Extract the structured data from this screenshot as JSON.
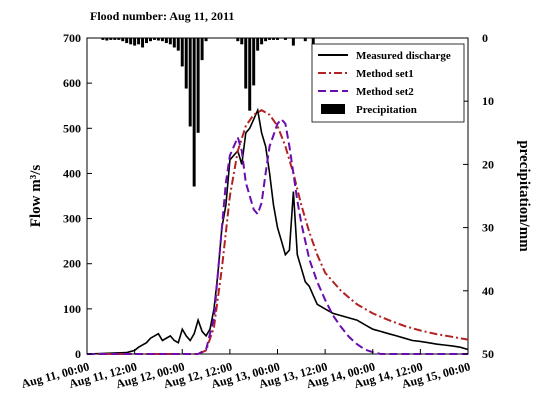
{
  "chart_data": {
    "type": "line",
    "title": "Flood number: Aug 11, 2011",
    "xlabel": "",
    "ylabel": "Flow m³/s",
    "y2label": "precipitation/mm",
    "x_ticks": [
      "Aug 11, 00:00",
      "Aug 11, 12:00",
      "Aug 12, 00:00",
      "Aug 12, 12:00",
      "Aug 13, 00:00",
      "Aug 13, 12:00",
      "Aug 14, 00:00",
      "Aug 14, 12:00",
      "Aug 15, 00:00"
    ],
    "xlim_hours": [
      0,
      96
    ],
    "ylim": [
      0,
      700
    ],
    "y_ticks": [
      0,
      100,
      200,
      300,
      400,
      500,
      600,
      700
    ],
    "y2lim_inverted": [
      0,
      50
    ],
    "y2_ticks": [
      0,
      10,
      20,
      30,
      40,
      50
    ],
    "legend_position": "top-right",
    "series": [
      {
        "name": "Measured discharge",
        "color": "#000000",
        "style": "solid",
        "x": [
          0,
          10,
          12,
          13,
          15,
          16,
          18,
          19,
          21,
          22,
          23,
          24,
          25,
          26,
          27,
          28,
          29,
          30,
          31,
          32,
          33,
          34,
          35,
          36,
          37,
          38,
          39,
          40,
          41,
          42,
          43,
          44,
          45,
          46,
          47,
          48,
          49,
          50,
          51,
          52,
          53,
          54,
          55,
          56,
          57,
          58,
          60,
          62,
          64,
          66,
          68,
          70,
          72,
          74,
          76,
          78,
          80,
          82,
          84,
          86,
          88,
          90,
          92,
          94,
          96
        ],
        "y": [
          0,
          3,
          8,
          15,
          25,
          35,
          45,
          30,
          40,
          30,
          25,
          55,
          40,
          30,
          45,
          75,
          50,
          40,
          55,
          100,
          180,
          280,
          330,
          430,
          440,
          450,
          420,
          490,
          500,
          520,
          540,
          490,
          460,
          400,
          330,
          280,
          250,
          220,
          230,
          360,
          220,
          190,
          160,
          150,
          130,
          110,
          100,
          90,
          85,
          80,
          75,
          65,
          55,
          50,
          45,
          40,
          35,
          30,
          28,
          25,
          22,
          20,
          18,
          15,
          10
        ]
      },
      {
        "name": "Method set1",
        "color": "#b22222",
        "style": "dashdot",
        "x": [
          0,
          28,
          30,
          32,
          34,
          36,
          38,
          40,
          42,
          44,
          46,
          48,
          50,
          52,
          54,
          56,
          58,
          60,
          64,
          68,
          72,
          76,
          80,
          84,
          88,
          92,
          96
        ],
        "y": [
          0,
          0,
          8,
          60,
          190,
          350,
          450,
          505,
          530,
          540,
          530,
          505,
          460,
          400,
          330,
          270,
          220,
          180,
          140,
          110,
          90,
          75,
          62,
          52,
          44,
          38,
          32
        ]
      },
      {
        "name": "Method set2",
        "color": "#6a0dad",
        "style": "dashdash",
        "x": [
          0,
          28,
          30,
          32,
          34,
          35,
          36,
          38,
          39,
          40,
          42,
          43,
          44,
          45,
          46,
          48,
          49,
          50,
          51,
          52,
          53,
          54,
          56,
          58,
          60,
          62,
          64,
          66,
          68,
          70,
          72,
          74,
          76,
          78,
          96
        ],
        "y": [
          0,
          0,
          10,
          80,
          280,
          380,
          440,
          480,
          450,
          380,
          320,
          310,
          335,
          400,
          460,
          510,
          520,
          510,
          460,
          400,
          340,
          290,
          210,
          160,
          120,
          85,
          60,
          38,
          22,
          10,
          4,
          0,
          0,
          0,
          0
        ]
      }
    ],
    "precipitation": {
      "name": "Precipitation",
      "color": "#000000",
      "hours": [
        4,
        5,
        6,
        7,
        8,
        9,
        10,
        11,
        12,
        13,
        14,
        15,
        16,
        17,
        18,
        19,
        20,
        21,
        22,
        23,
        24,
        25,
        26,
        27,
        28,
        29,
        30,
        38,
        39,
        40,
        41,
        42,
        43,
        44,
        45,
        46,
        47,
        48,
        50,
        52,
        55,
        57
      ],
      "mm": [
        0.3,
        0.4,
        0.3,
        0.3,
        0.3,
        0.5,
        0.8,
        1.0,
        1.2,
        1.0,
        1.5,
        0.8,
        0.5,
        0.3,
        0.4,
        0.5,
        0.8,
        1.0,
        1.5,
        2.0,
        4.5,
        8.0,
        14.0,
        23.5,
        15.0,
        3.5,
        0.5,
        0.5,
        1.0,
        8.0,
        11.5,
        7.5,
        2.0,
        1.0,
        0.5,
        0.3,
        0.3,
        0.3,
        0.3,
        1.2,
        0.5,
        2.0
      ]
    }
  }
}
